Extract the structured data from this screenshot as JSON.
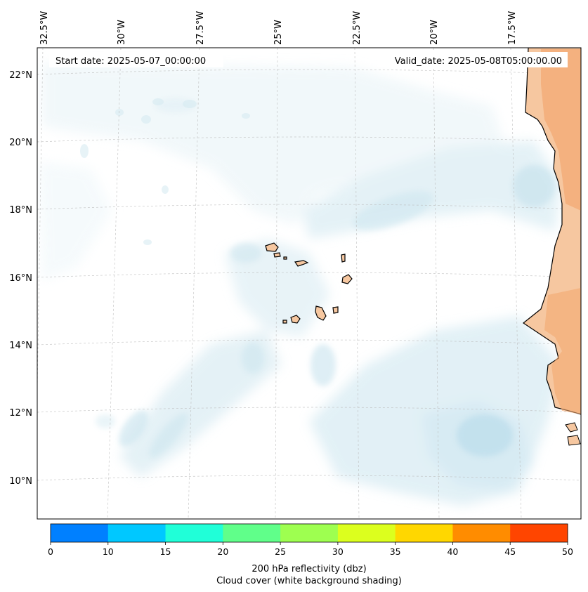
{
  "map": {
    "start_date": "Start date: 2025-05-07_00:00:00",
    "valid_date": "Valid_date: 2025-05-08T05:00:00.00",
    "lon_labels": [
      "32.5°W",
      "30°W",
      "27.5°W",
      "25°W",
      "22.5°W",
      "20°W",
      "17.5°W"
    ],
    "lat_labels": [
      "22°N",
      "20°N",
      "18°N",
      "16°N",
      "14°N",
      "12°N",
      "10°N"
    ],
    "land_color": "#f6c7a0",
    "land_warm_color": "#f4a870",
    "cloud_color": "#bfe0ec",
    "cloud_light_color": "#e3f1f6"
  },
  "colorbar": {
    "ticks": [
      "0",
      "10",
      "15",
      "20",
      "25",
      "30",
      "35",
      "40",
      "45",
      "50"
    ],
    "colors": [
      "#0080ff",
      "#00c8ff",
      "#20ffd8",
      "#60ff8a",
      "#9eff50",
      "#dcff1e",
      "#ffd700",
      "#ff8c00",
      "#ff4500"
    ],
    "title": "200 hPa reflectivity (dbz)",
    "subtitle": "Cloud cover (white background shading)"
  }
}
